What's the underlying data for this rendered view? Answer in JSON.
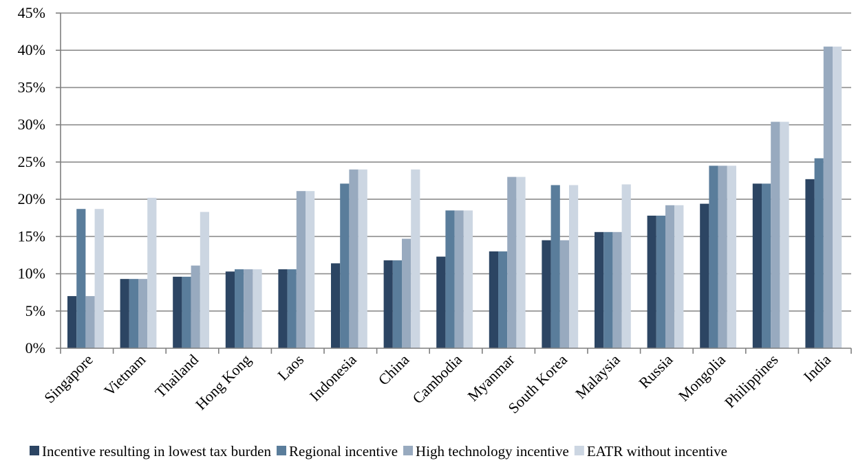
{
  "chart_data": {
    "type": "bar",
    "title": "",
    "xlabel": "",
    "ylabel": "",
    "ylim": [
      0,
      45
    ],
    "y_tick_labels": [
      "0%",
      "5%",
      "10%",
      "15%",
      "20%",
      "25%",
      "30%",
      "35%",
      "40%",
      "45%"
    ],
    "grid": true,
    "legend_position": "bottom",
    "categories": [
      "Singapore",
      "Vietnam",
      "Thailand",
      "Hong Kong",
      "Laos",
      "Indonesia",
      "China",
      "Cambodia",
      "Myanmar",
      "South Korea",
      "Malaysia",
      "Russia",
      "Mongolia",
      "Philippines",
      "India"
    ],
    "series": [
      {
        "name": "Incentive resulting in lowest tax burden",
        "color": "#2c4563",
        "values": [
          7.0,
          9.3,
          9.6,
          10.3,
          10.6,
          11.4,
          11.8,
          12.3,
          13.0,
          14.5,
          15.6,
          17.8,
          19.4,
          22.1,
          22.7
        ]
      },
      {
        "name": "Regional incentive",
        "color": "#5a7d9b",
        "values": [
          18.7,
          9.3,
          9.6,
          10.6,
          10.6,
          22.1,
          11.8,
          18.5,
          13.0,
          21.9,
          15.6,
          17.8,
          24.5,
          22.1,
          25.5
        ]
      },
      {
        "name": "High technology incentive",
        "color": "#98aabf",
        "values": [
          7.0,
          9.3,
          11.1,
          10.6,
          21.1,
          24.0,
          14.7,
          18.5,
          23.0,
          14.5,
          15.6,
          19.2,
          24.5,
          30.4,
          40.5
        ]
      },
      {
        "name": "EATR without incentive",
        "color": "#ccd6e2",
        "values": [
          18.7,
          20.2,
          18.3,
          10.6,
          21.1,
          24.0,
          24.0,
          18.5,
          23.0,
          21.9,
          22.0,
          19.2,
          24.5,
          30.4,
          40.5
        ]
      }
    ]
  }
}
